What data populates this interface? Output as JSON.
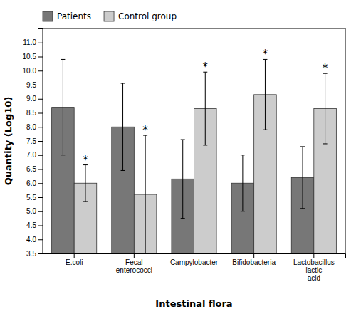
{
  "chart_data": {
    "type": "bar",
    "xlabel": "Intestinal flora",
    "ylabel": "Quantity (Log10)",
    "categories": [
      "E.coli",
      "Fecal\nenterococci",
      "Campylobacter",
      "Bifidobacteria",
      "Lactobacillus\nlactic\nacid"
    ],
    "series": [
      {
        "name": "Patients",
        "color": "#777777",
        "values": [
          8.7,
          8.0,
          6.15,
          6.0,
          6.2
        ],
        "errors": [
          1.7,
          1.55,
          1.4,
          1.0,
          1.1
        ]
      },
      {
        "name": "Control group",
        "color": "#cccccc",
        "values": [
          6.0,
          5.6,
          8.65,
          9.15,
          8.65
        ],
        "errors": [
          0.65,
          2.1,
          1.3,
          1.25,
          1.25
        ],
        "annotations": [
          "*",
          "*",
          "*",
          "*",
          "*"
        ]
      }
    ],
    "ylim": [
      3.5,
      11.5
    ],
    "yticks": [
      3.5,
      {
        "value": 4.0,
        "label": "4.0"
      },
      4.5,
      {
        "value": 5.0,
        "label": "5.0"
      },
      5.5,
      {
        "value": 6.0,
        "label": "6.0"
      },
      6.5,
      {
        "value": 7.0,
        "label": "7.0"
      },
      7.5,
      {
        "value": 8.0,
        "label": "8.0"
      },
      8.5,
      {
        "value": 9.0,
        "label": "9.0"
      },
      9.5,
      {
        "value": 10.0,
        "label": "10.0"
      },
      10.5,
      {
        "value": 11.0,
        "label": "11.0"
      }
    ],
    "legend": "upper left",
    "grid": false
  }
}
